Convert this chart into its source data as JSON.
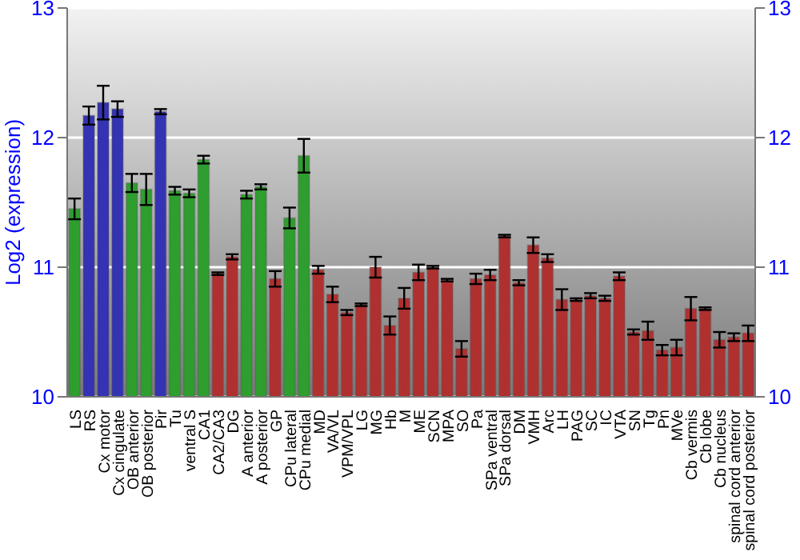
{
  "chart_data": {
    "type": "bar",
    "ylabel": "Log2 (expression)",
    "categories": [
      "LS",
      "RS",
      "Cx motor",
      "Cx cingulate",
      "OB anterior",
      "OB posterior",
      "Pir",
      "Tu",
      "ventral S",
      "CA1",
      "CA2/CA3",
      "DG",
      "A anterior",
      "A posterior",
      "GP",
      "CPu lateral",
      "CPu medial",
      "MD",
      "VA/VL",
      "VPM/VPL",
      "LG",
      "MG",
      "Hb",
      "M",
      "ME",
      "SCN",
      "MPA",
      "SO",
      "Pa",
      "SPa ventral",
      "SPa dorsal",
      "DM",
      "VMH",
      "Arc",
      "LH",
      "PAG",
      "SC",
      "IC",
      "VTA",
      "SN",
      "Tg",
      "Pn",
      "MVe",
      "Cb vermis",
      "Cb lobe",
      "Cb nucleus",
      "spinal cord anterior",
      "spinal cord posterior"
    ],
    "values": [
      11.45,
      12.17,
      12.27,
      12.22,
      11.65,
      11.6,
      12.2,
      11.59,
      11.57,
      11.83,
      10.95,
      11.08,
      11.56,
      11.62,
      10.91,
      11.38,
      11.86,
      10.98,
      10.79,
      10.65,
      10.71,
      11.0,
      10.55,
      10.76,
      10.96,
      11.0,
      10.9,
      10.37,
      10.91,
      10.94,
      11.24,
      10.88,
      11.17,
      11.07,
      10.75,
      10.75,
      10.78,
      10.76,
      10.93,
      10.5,
      10.51,
      10.36,
      10.38,
      10.68,
      10.68,
      10.44,
      10.46,
      10.49
    ],
    "errors": [
      0.08,
      0.07,
      0.13,
      0.06,
      0.07,
      0.12,
      0.02,
      0.03,
      0.03,
      0.03,
      0.01,
      0.02,
      0.03,
      0.02,
      0.06,
      0.08,
      0.13,
      0.03,
      0.06,
      0.02,
      0.01,
      0.08,
      0.07,
      0.08,
      0.06,
      0.01,
      0.01,
      0.06,
      0.04,
      0.04,
      0.01,
      0.02,
      0.06,
      0.03,
      0.08,
      0.01,
      0.02,
      0.02,
      0.03,
      0.02,
      0.07,
      0.04,
      0.06,
      0.09,
      0.01,
      0.06,
      0.03,
      0.06
    ],
    "colors": [
      "#2e9e2e",
      "#3333b3",
      "#3333b3",
      "#3333b3",
      "#2e9e2e",
      "#2e9e2e",
      "#3333b3",
      "#2e9e2e",
      "#2e9e2e",
      "#2e9e2e",
      "#b03030",
      "#b03030",
      "#2e9e2e",
      "#2e9e2e",
      "#b03030",
      "#2e9e2e",
      "#2e9e2e",
      "#b03030",
      "#b03030",
      "#b03030",
      "#b03030",
      "#b03030",
      "#b03030",
      "#b03030",
      "#b03030",
      "#b03030",
      "#b03030",
      "#b03030",
      "#b03030",
      "#b03030",
      "#b03030",
      "#b03030",
      "#b03030",
      "#b03030",
      "#b03030",
      "#b03030",
      "#b03030",
      "#b03030",
      "#b03030",
      "#b03030",
      "#b03030",
      "#b03030",
      "#b03030",
      "#b03030",
      "#b03030",
      "#b03030",
      "#b03030",
      "#b03030"
    ],
    "ylim": [
      10,
      13
    ],
    "yticks": [
      10,
      11,
      12,
      13
    ],
    "y2lim": [
      10,
      13
    ],
    "y2ticks": [
      10,
      11,
      12,
      13
    ],
    "grid": "y"
  }
}
